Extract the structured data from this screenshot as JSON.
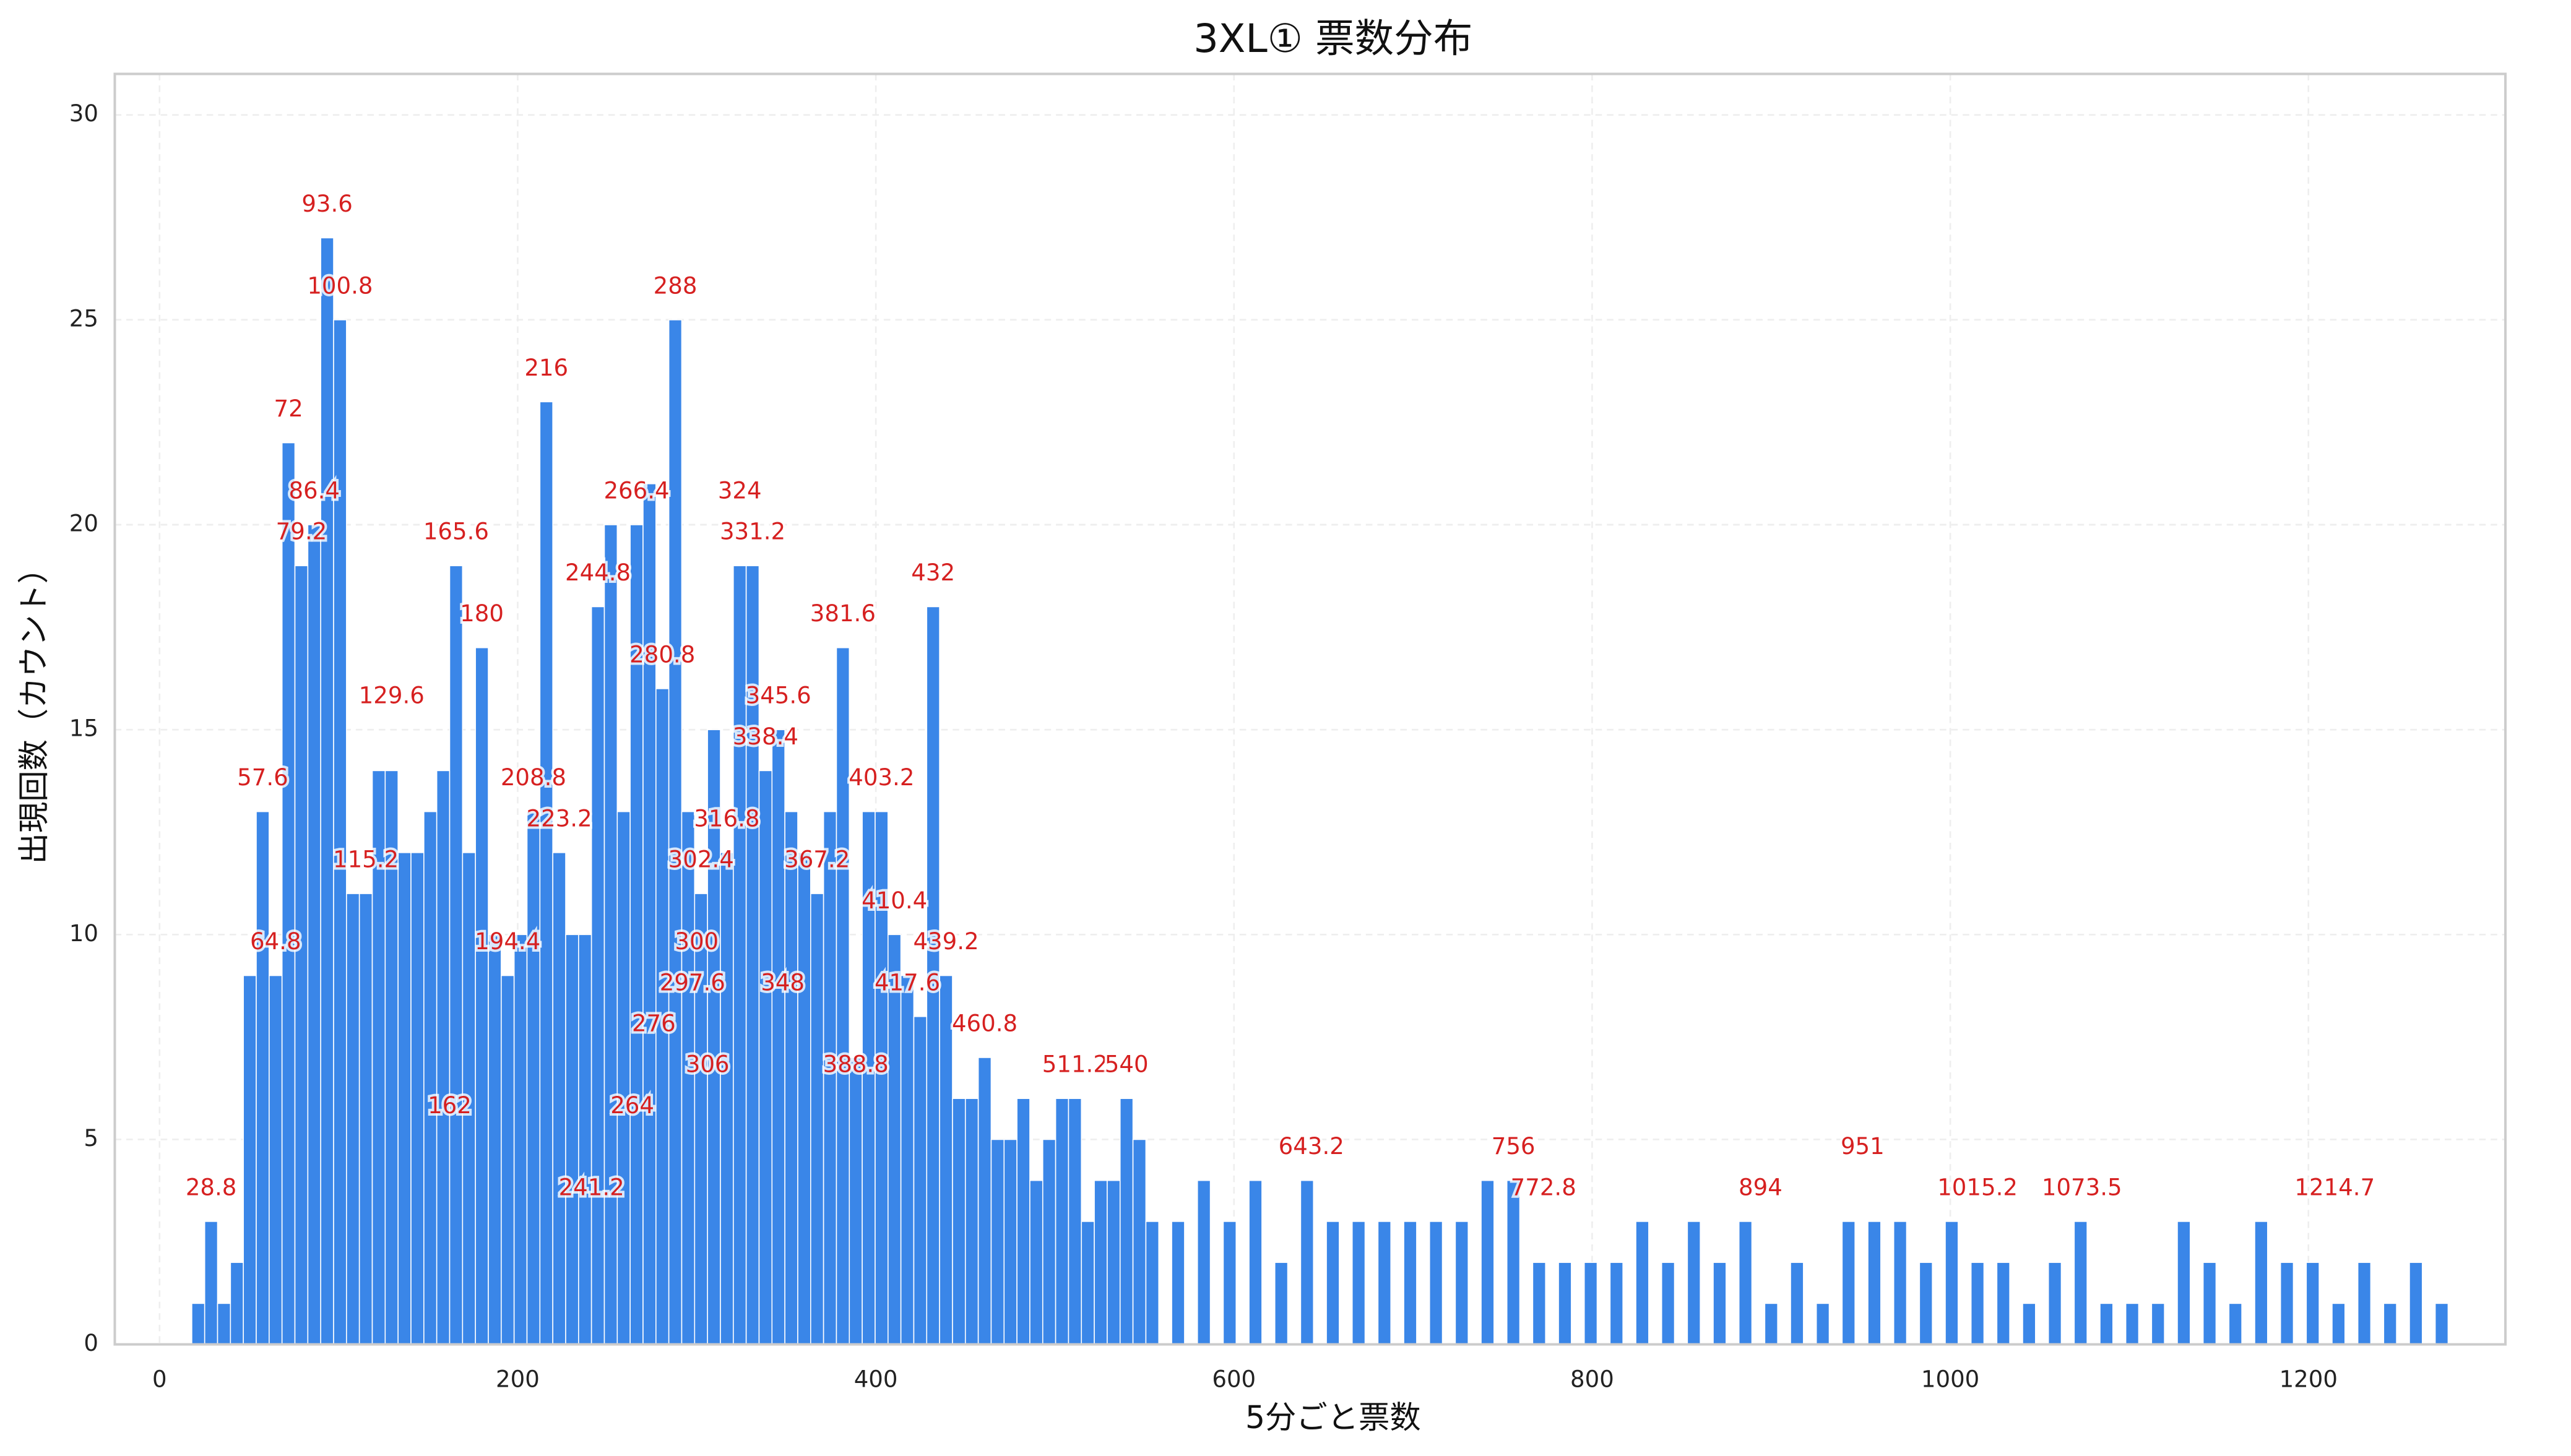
{
  "chart_data": {
    "type": "bar",
    "title": "3XL① 票数分布",
    "xlabel": "5分ごと票数",
    "ylabel": "出現回数（カウント）",
    "color": "#3a86e8",
    "grid": true,
    "xlim": [
      -25,
      1310
    ],
    "ylim": [
      0,
      31
    ],
    "xticks": [
      0,
      200,
      400,
      600,
      800,
      1000,
      1200
    ],
    "yticks": [
      0,
      5,
      10,
      15,
      20,
      25,
      30
    ],
    "x": [
      21.6,
      28.8,
      36,
      43.2,
      50.4,
      57.6,
      64.8,
      72,
      79.2,
      86.4,
      93.6,
      100.8,
      108,
      115.2,
      122.4,
      129.6,
      136.8,
      144,
      151.2,
      158.4,
      165.6,
      172.8,
      180,
      187.2,
      194.4,
      201.6,
      208.8,
      216,
      223.2,
      230.4,
      237.6,
      244.8,
      252,
      259.2,
      266.4,
      273.6,
      280.8,
      288,
      295.2,
      302.4,
      309.6,
      316.8,
      324,
      331.2,
      338.4,
      345.6,
      352.8,
      360,
      367.2,
      374.4,
      381.6,
      388.8,
      396,
      403.2,
      410.4,
      417.6,
      424.8,
      432,
      439.2,
      446.4,
      453.6,
      460.8,
      468,
      475.2,
      482.4,
      489.6,
      496.8,
      504,
      511.2,
      518.4,
      525.6,
      532.8,
      540,
      547.2,
      554.4,
      568.8,
      583.2,
      597.6,
      612,
      626.4,
      640.8,
      655.2,
      669.6,
      684,
      698.4,
      712.8,
      727.2,
      741.6,
      756,
      770.4,
      784.8,
      799.2,
      813.6,
      828,
      842.4,
      856.8,
      871.2,
      885.6,
      900,
      914.4,
      928.8,
      943.2,
      957.6,
      972,
      986.4,
      1000.8,
      1015.2,
      1029.6,
      1044,
      1058.4,
      1072.8,
      1087.2,
      1101.6,
      1116,
      1130.4,
      1144.8,
      1159.2,
      1173.6,
      1188,
      1202.4,
      1216.8,
      1231.2,
      1245.6,
      1260,
      1274.4
    ],
    "values": [
      1,
      3,
      1,
      2,
      9,
      13,
      9,
      22,
      19,
      20,
      27,
      25,
      11,
      11,
      14,
      14,
      12,
      12,
      13,
      14,
      19,
      12,
      17,
      10,
      9,
      10,
      13,
      23,
      12,
      10,
      10,
      18,
      20,
      13,
      20,
      21,
      16,
      25,
      13,
      11,
      15,
      12,
      19,
      19,
      14,
      15,
      13,
      12,
      11,
      13,
      17,
      7,
      13,
      13,
      10,
      9,
      8,
      18,
      9,
      6,
      6,
      7,
      5,
      5,
      6,
      4,
      5,
      6,
      6,
      3,
      4,
      4,
      6,
      5,
      3,
      3,
      4,
      3,
      4,
      2,
      4,
      3,
      3,
      3,
      3,
      3,
      3,
      4,
      4,
      2,
      2,
      2,
      2,
      3,
      2,
      3,
      2,
      3,
      1,
      2,
      1,
      3,
      3,
      3,
      2,
      3,
      2,
      2,
      1,
      2,
      3,
      1,
      1,
      1,
      3,
      2,
      1,
      3,
      2,
      2,
      1,
      2,
      1,
      2,
      1
    ],
    "annotations": [
      {
        "label": "28.8",
        "x": 28.8,
        "y": 3.8
      },
      {
        "label": "57.6",
        "x": 57.6,
        "y": 13.8
      },
      {
        "label": "64.8",
        "x": 64.8,
        "y": 9.8
      },
      {
        "label": "72",
        "x": 72,
        "y": 22.8
      },
      {
        "label": "79.2",
        "x": 79.2,
        "y": 19.8
      },
      {
        "label": "86.4",
        "x": 86.4,
        "y": 20.8
      },
      {
        "label": "93.6",
        "x": 93.6,
        "y": 27.8
      },
      {
        "label": "100.8",
        "x": 100.8,
        "y": 25.8
      },
      {
        "label": "115.2",
        "x": 115.2,
        "y": 11.8
      },
      {
        "label": "129.6",
        "x": 129.6,
        "y": 15.8
      },
      {
        "label": "162",
        "x": 162,
        "y": 5.8
      },
      {
        "label": "165.6",
        "x": 165.6,
        "y": 19.8
      },
      {
        "label": "180",
        "x": 180,
        "y": 17.8
      },
      {
        "label": "194.4",
        "x": 194.4,
        "y": 9.8
      },
      {
        "label": "208.8",
        "x": 208.8,
        "y": 13.8
      },
      {
        "label": "216",
        "x": 216,
        "y": 23.8
      },
      {
        "label": "223.2",
        "x": 223.2,
        "y": 12.8
      },
      {
        "label": "241.2",
        "x": 241.2,
        "y": 3.8
      },
      {
        "label": "244.8",
        "x": 244.8,
        "y": 18.8
      },
      {
        "label": "264",
        "x": 264,
        "y": 5.8
      },
      {
        "label": "266.4",
        "x": 266.4,
        "y": 20.8
      },
      {
        "label": "276",
        "x": 276,
        "y": 7.8
      },
      {
        "label": "280.8",
        "x": 280.8,
        "y": 16.8
      },
      {
        "label": "288",
        "x": 288,
        "y": 25.8
      },
      {
        "label": "297.6",
        "x": 297.6,
        "y": 8.8
      },
      {
        "label": "300",
        "x": 300,
        "y": 9.8
      },
      {
        "label": "302.4",
        "x": 302.4,
        "y": 11.8
      },
      {
        "label": "306",
        "x": 306,
        "y": 6.8
      },
      {
        "label": "316.8",
        "x": 316.8,
        "y": 12.8
      },
      {
        "label": "324",
        "x": 324,
        "y": 20.8
      },
      {
        "label": "331.2",
        "x": 331.2,
        "y": 19.8
      },
      {
        "label": "338.4",
        "x": 338.4,
        "y": 14.8
      },
      {
        "label": "345.6",
        "x": 345.6,
        "y": 15.8
      },
      {
        "label": "348",
        "x": 348,
        "y": 8.8
      },
      {
        "label": "367.2",
        "x": 367.2,
        "y": 11.8
      },
      {
        "label": "381.6",
        "x": 381.6,
        "y": 17.8
      },
      {
        "label": "388.8",
        "x": 388.8,
        "y": 6.8
      },
      {
        "label": "403.2",
        "x": 403.2,
        "y": 13.8
      },
      {
        "label": "410.4",
        "x": 410.4,
        "y": 10.8
      },
      {
        "label": "417.6",
        "x": 417.6,
        "y": 8.8
      },
      {
        "label": "432",
        "x": 432,
        "y": 18.8
      },
      {
        "label": "439.2",
        "x": 439.2,
        "y": 9.8
      },
      {
        "label": "460.8",
        "x": 460.8,
        "y": 7.8
      },
      {
        "label": "511.2",
        "x": 511.2,
        "y": 6.8
      },
      {
        "label": "540",
        "x": 540,
        "y": 6.8
      },
      {
        "label": "643.2",
        "x": 643.2,
        "y": 4.8
      },
      {
        "label": "756",
        "x": 756,
        "y": 4.8
      },
      {
        "label": "772.8",
        "x": 772.8,
        "y": 3.8
      },
      {
        "label": "894",
        "x": 894,
        "y": 3.8
      },
      {
        "label": "951",
        "x": 951,
        "y": 4.8
      },
      {
        "label": "1015.2",
        "x": 1015.2,
        "y": 3.8
      },
      {
        "label": "1073.5",
        "x": 1073.5,
        "y": 3.8
      },
      {
        "label": "1214.7",
        "x": 1214.7,
        "y": 3.8
      }
    ],
    "annotation_color": "#d62020"
  }
}
